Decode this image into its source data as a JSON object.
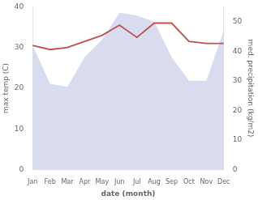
{
  "chart_data": {
    "type": "line",
    "categories": [
      "Jan",
      "Feb",
      "Mar",
      "Apr",
      "May",
      "Jun",
      "Jul",
      "Aug",
      "Sep",
      "Oct",
      "Nov",
      "Dec"
    ],
    "series": [
      {
        "type": "line",
        "color": "#c0504d",
        "values": [
          30.5,
          29.5,
          30.0,
          31.5,
          33.0,
          35.5,
          32.5,
          36.0,
          36.0,
          31.5,
          31.0,
          31.0
        ]
      },
      {
        "type": "area",
        "color": "#b8c0e0",
        "axis": "y2",
        "values": [
          42,
          29,
          28,
          38,
          44,
          53,
          52,
          50,
          38,
          30,
          30,
          47
        ]
      }
    ],
    "xlabel": "date (month)",
    "ylabel": "max temp (C)",
    "y2label": "med. precipitation (kg/m2)",
    "ylim": [
      0,
      40
    ],
    "yticks": [
      0,
      10,
      20,
      30,
      40
    ],
    "y2lim": [
      0,
      55
    ],
    "y2ticks": [
      0,
      10,
      20,
      30,
      40,
      50
    ],
    "grid": false
  }
}
